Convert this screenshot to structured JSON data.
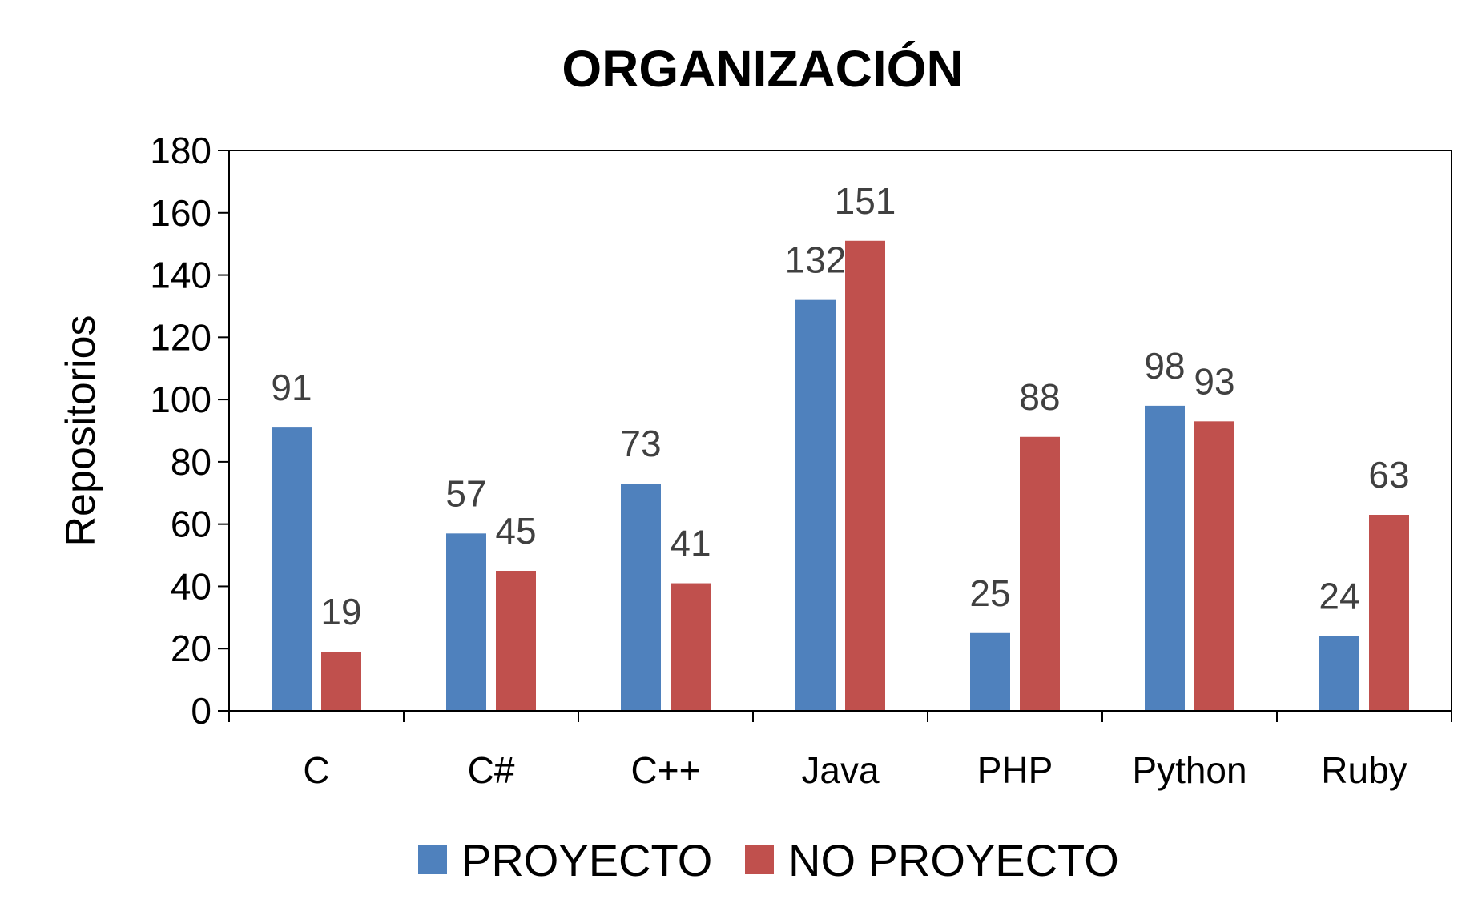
{
  "chart_data": {
    "type": "bar",
    "title": "ORGANIZACIÓN",
    "xlabel": "",
    "ylabel": "Repositorios",
    "ylim": [
      0,
      180
    ],
    "yticks": [
      0,
      20,
      40,
      60,
      80,
      100,
      120,
      140,
      160,
      180
    ],
    "categories": [
      "C",
      "C#",
      "C++",
      "Java",
      "PHP",
      "Python",
      "Ruby"
    ],
    "series": [
      {
        "name": "PROYECTO",
        "color": "#4f81bd",
        "values": [
          91,
          57,
          73,
          132,
          25,
          98,
          24
        ]
      },
      {
        "name": "NO PROYECTO",
        "color": "#c0504d",
        "values": [
          19,
          45,
          41,
          151,
          88,
          93,
          63
        ]
      }
    ],
    "grid": false,
    "legend": "bottom-center"
  }
}
